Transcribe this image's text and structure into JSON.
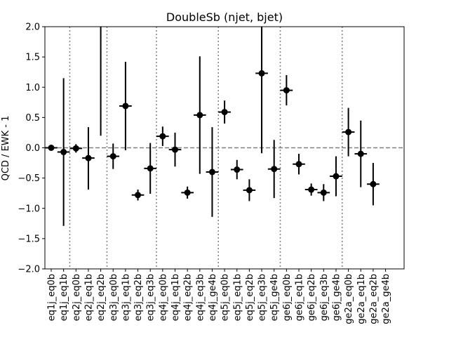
{
  "chart_data": {
    "type": "scatter",
    "title": "DoubleSb (njet, bjet)",
    "xlabel": "",
    "ylabel": "QCD / EWK - 1",
    "ylim": [
      -2.0,
      2.0
    ],
    "yticks": [
      -2.0,
      -1.5,
      -1.0,
      -0.5,
      0.0,
      0.5,
      1.0,
      1.5,
      2.0
    ],
    "ytick_labels": [
      "−2.0",
      "−1.5",
      "−1.0",
      "−0.5",
      "0.0",
      "0.5",
      "1.0",
      "1.5",
      "2.0"
    ],
    "reference_line": 0.0,
    "group_separators_after": [
      "eq1j_eq1b",
      "eq2j_eq2b",
      "eq3j_eq3b",
      "eq4j_ge4b",
      "eq5j_ge4b",
      "ge6j_ge4b"
    ],
    "categories": [
      "eq1j_eq0b",
      "eq1j_eq1b",
      "eq2j_eq0b",
      "eq2j_eq1b",
      "eq2j_eq2b",
      "eq3j_eq0b",
      "eq3j_eq1b",
      "eq3j_eq2b",
      "eq3j_eq3b",
      "eq4j_eq0b",
      "eq4j_eq1b",
      "eq4j_eq2b",
      "eq4j_eq3b",
      "eq4j_ge4b",
      "eq5j_eq0b",
      "eq5j_eq1b",
      "eq5j_eq2b",
      "eq5j_eq3b",
      "eq5j_ge4b",
      "ge6j_eq0b",
      "ge6j_eq1b",
      "ge6j_eq2b",
      "ge6j_eq3b",
      "ge6j_ge4b",
      "ge2a_eq0b",
      "ge2a_eq1b",
      "ge2a_eq2b",
      "ge2a_ge4b"
    ],
    "points": [
      {
        "y": 0.0,
        "err_low": 0.0,
        "err_high": 0.0
      },
      {
        "y": -0.07,
        "err_low": 1.22,
        "err_high": 1.22
      },
      {
        "y": -0.01,
        "err_low": 0.07,
        "err_high": 0.07
      },
      {
        "y": -0.17,
        "err_low": 0.52,
        "err_high": 0.51
      },
      {
        "y": 2.2,
        "err_low": 2.0,
        "err_high": 2.0
      },
      {
        "y": -0.14,
        "err_low": 0.21,
        "err_high": 0.21
      },
      {
        "y": 0.69,
        "err_low": 0.73,
        "err_high": 0.73
      },
      {
        "y": -0.78,
        "err_low": 0.09,
        "err_high": 0.09
      },
      {
        "y": -0.34,
        "err_low": 0.42,
        "err_high": 0.42
      },
      {
        "y": 0.19,
        "err_low": 0.16,
        "err_high": 0.16
      },
      {
        "y": -0.03,
        "err_low": 0.28,
        "err_high": 0.28
      },
      {
        "y": -0.74,
        "err_low": 0.1,
        "err_high": 0.1
      },
      {
        "y": 0.54,
        "err_low": 0.97,
        "err_high": 0.97
      },
      {
        "y": -0.4,
        "err_low": 0.74,
        "err_high": 0.74
      },
      {
        "y": 0.59,
        "err_low": 0.19,
        "err_high": 0.19
      },
      {
        "y": -0.36,
        "err_low": 0.16,
        "err_high": 0.16
      },
      {
        "y": -0.7,
        "err_low": 0.18,
        "err_high": 0.18
      },
      {
        "y": 1.23,
        "err_low": 1.32,
        "err_high": 1.32
      },
      {
        "y": -0.35,
        "err_low": 0.48,
        "err_high": 0.48
      },
      {
        "y": 0.95,
        "err_low": 0.25,
        "err_high": 0.25
      },
      {
        "y": -0.27,
        "err_low": 0.17,
        "err_high": 0.17
      },
      {
        "y": -0.69,
        "err_low": 0.1,
        "err_high": 0.1
      },
      {
        "y": -0.74,
        "err_low": 0.14,
        "err_high": 0.14
      },
      {
        "y": -0.47,
        "err_low": 0.33,
        "err_high": 0.33
      },
      {
        "y": 0.26,
        "err_low": 0.4,
        "err_high": 0.4
      },
      {
        "y": -0.1,
        "err_low": 0.55,
        "err_high": 0.55
      },
      {
        "y": -0.6,
        "err_low": 0.35,
        "err_high": 0.35
      },
      null
    ],
    "colors": {
      "marker": "#000000",
      "reference_line": "#808080",
      "separator": "#808080"
    }
  }
}
